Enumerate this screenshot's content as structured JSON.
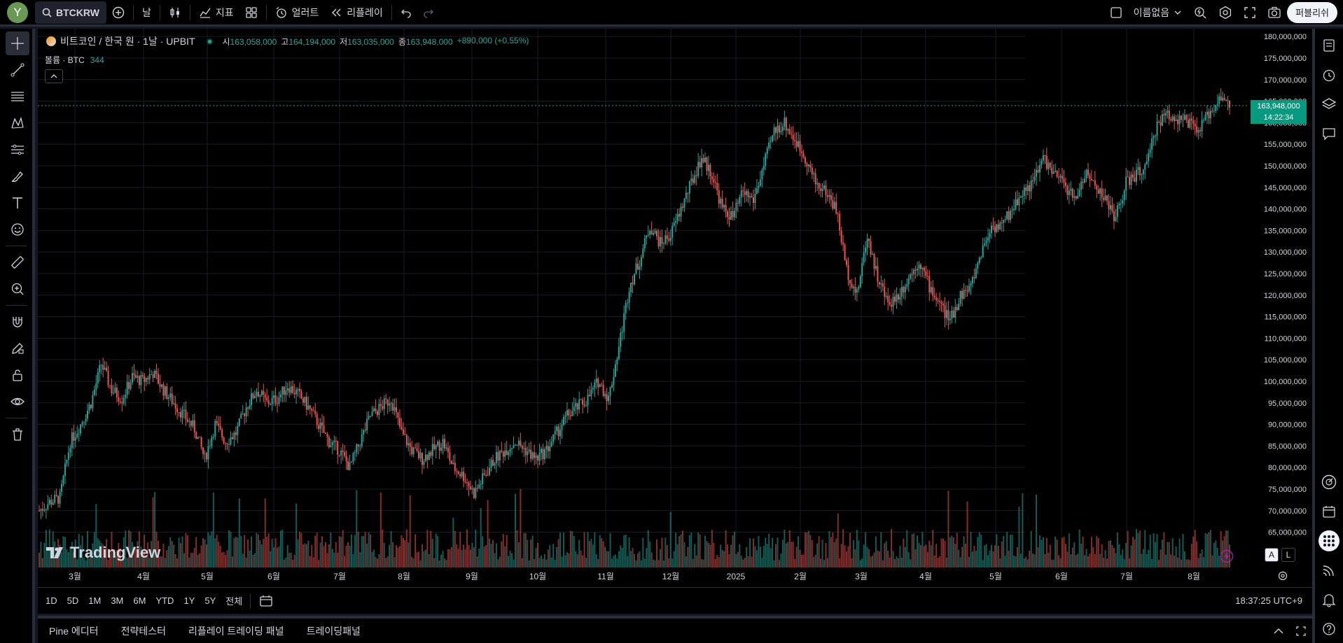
{
  "topbar": {
    "avatar_letter": "Y",
    "symbol": "BTCKRW",
    "interval": "날",
    "indicators": "지표",
    "alert": "얼러트",
    "replay": "리플레이",
    "layout_name": "이름없음",
    "publish": "퍼블리쉬"
  },
  "legend": {
    "title": "비트코인 / 한국 원 · 1날 · UPBIT",
    "open_label": "시",
    "open": "163,058,000",
    "high_label": "고",
    "high": "164,194,000",
    "low_label": "저",
    "low": "163,035,000",
    "close_label": "종",
    "close": "163,948,000",
    "change": "+890,000 (+0.55%)",
    "volume_label": "볼륨 · BTC",
    "volume": "344"
  },
  "price_tag": {
    "price": "163,948,000",
    "countdown": "14:22:34"
  },
  "axis_buttons": {
    "auto": "A",
    "log": "L"
  },
  "logo_text": "TradingView",
  "colors": {
    "up": "#26a69a",
    "down": "#ef5350",
    "background": "#000000"
  },
  "chart_data": {
    "type": "candlestick",
    "x_label_months": [
      "3월",
      "4월",
      "5월",
      "6월",
      "7월",
      "8월",
      "9월",
      "10월",
      "11월",
      "12월",
      "2025",
      "2월",
      "3월",
      "4월",
      "5월",
      "6월",
      "7월",
      "8월"
    ],
    "y_ticks": [
      "180,000,000",
      "175,000,000",
      "170,000,000",
      "165,000,000",
      "160,000,000",
      "155,000,000",
      "150,000,000",
      "145,000,000",
      "140,000,000",
      "135,000,000",
      "130,000,000",
      "125,000,000",
      "120,000,000",
      "115,000,000",
      "110,000,000",
      "105,000,000",
      "100,000,000",
      "95,000,000",
      "90,000,000",
      "85,000,000",
      "80,000,000",
      "75,000,000",
      "70,000,000",
      "65,000,000"
    ],
    "ylim": [
      60000000,
      181000000
    ],
    "last_price": 163948000,
    "approx_close_path": [
      [
        0,
        70
      ],
      [
        6,
        72
      ],
      [
        12,
        73
      ],
      [
        18,
        86
      ],
      [
        24,
        90
      ],
      [
        30,
        95
      ],
      [
        36,
        104
      ],
      [
        42,
        98
      ],
      [
        48,
        96
      ],
      [
        54,
        101
      ],
      [
        60,
        100
      ],
      [
        66,
        102
      ],
      [
        72,
        98
      ],
      [
        78,
        95
      ],
      [
        84,
        92
      ],
      [
        90,
        89
      ],
      [
        96,
        82
      ],
      [
        102,
        90
      ],
      [
        108,
        86
      ],
      [
        114,
        88
      ],
      [
        120,
        94
      ],
      [
        126,
        98
      ],
      [
        132,
        95
      ],
      [
        138,
        96
      ],
      [
        144,
        99
      ],
      [
        150,
        97
      ],
      [
        156,
        94
      ],
      [
        162,
        90
      ],
      [
        168,
        86
      ],
      [
        174,
        84
      ],
      [
        180,
        80
      ],
      [
        186,
        86
      ],
      [
        192,
        92
      ],
      [
        198,
        94
      ],
      [
        204,
        96
      ],
      [
        210,
        88
      ],
      [
        216,
        84
      ],
      [
        222,
        82
      ],
      [
        228,
        84
      ],
      [
        234,
        86
      ],
      [
        240,
        80
      ],
      [
        246,
        78
      ],
      [
        252,
        74
      ],
      [
        258,
        78
      ],
      [
        264,
        82
      ],
      [
        270,
        84
      ],
      [
        276,
        86
      ],
      [
        282,
        84
      ],
      [
        288,
        82
      ],
      [
        294,
        84
      ],
      [
        300,
        88
      ],
      [
        306,
        92
      ],
      [
        312,
        94
      ],
      [
        318,
        96
      ],
      [
        324,
        100
      ],
      [
        330,
        96
      ],
      [
        336,
        108
      ],
      [
        342,
        122
      ],
      [
        348,
        128
      ],
      [
        354,
        136
      ],
      [
        360,
        132
      ],
      [
        366,
        134
      ],
      [
        372,
        140
      ],
      [
        378,
        146
      ],
      [
        384,
        152
      ],
      [
        390,
        148
      ],
      [
        396,
        140
      ],
      [
        402,
        138
      ],
      [
        408,
        144
      ],
      [
        414,
        142
      ],
      [
        420,
        150
      ],
      [
        426,
        158
      ],
      [
        432,
        160
      ],
      [
        438,
        156
      ],
      [
        444,
        152
      ],
      [
        450,
        146
      ],
      [
        456,
        144
      ],
      [
        462,
        140
      ],
      [
        468,
        126
      ],
      [
        474,
        120
      ],
      [
        480,
        134
      ],
      [
        486,
        124
      ],
      [
        492,
        118
      ],
      [
        498,
        120
      ],
      [
        504,
        124
      ],
      [
        510,
        128
      ],
      [
        516,
        122
      ],
      [
        522,
        118
      ],
      [
        528,
        114
      ],
      [
        534,
        120
      ],
      [
        540,
        122
      ],
      [
        546,
        130
      ],
      [
        552,
        136
      ],
      [
        558,
        136
      ],
      [
        564,
        140
      ],
      [
        570,
        144
      ],
      [
        576,
        146
      ],
      [
        582,
        152
      ],
      [
        588,
        148
      ],
      [
        594,
        146
      ],
      [
        600,
        142
      ],
      [
        606,
        148
      ],
      [
        612,
        146
      ],
      [
        618,
        142
      ],
      [
        624,
        138
      ],
      [
        630,
        146
      ],
      [
        636,
        148
      ],
      [
        642,
        150
      ],
      [
        648,
        160
      ],
      [
        654,
        162
      ],
      [
        660,
        161
      ],
      [
        666,
        160
      ],
      [
        672,
        158
      ],
      [
        678,
        162
      ],
      [
        684,
        166
      ],
      [
        690,
        164
      ]
    ]
  },
  "range": {
    "buttons": [
      "1D",
      "5D",
      "1M",
      "3M",
      "6M",
      "YTD",
      "1Y",
      "5Y",
      "전체"
    ],
    "clock": "18:37:25 UTC+9"
  },
  "bottom_tabs": [
    "Pine 에디터",
    "전략테스터",
    "리플레이 트레이딩 패널",
    "트레이딩패널"
  ]
}
